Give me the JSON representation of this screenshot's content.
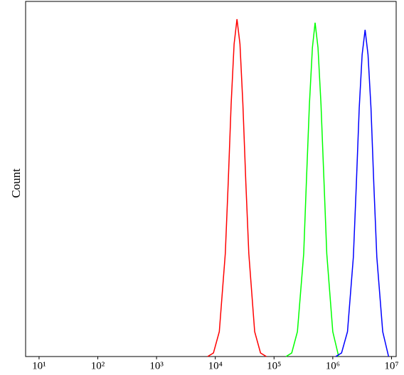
{
  "chart_data": {
    "type": "line",
    "y_label": "Count",
    "xscale": "log",
    "xlim": [
      5.9,
      12000000
    ],
    "ylim": [
      0,
      100
    ],
    "xticks": [
      {
        "value": 10,
        "label": "10¹"
      },
      {
        "value": 100,
        "label": "10²"
      },
      {
        "value": 1000,
        "label": "10³"
      },
      {
        "value": 10000,
        "label": "10⁴"
      },
      {
        "value": 100000,
        "label": "10⁵"
      },
      {
        "value": 1000000,
        "label": "10⁶"
      },
      {
        "value": 10000000,
        "label": "10⁷"
      }
    ],
    "series": [
      {
        "color": "#ff0000",
        "x": [
          7400,
          9300,
          11700,
          14800,
          16600,
          18600,
          20900,
          23400,
          26300,
          29500,
          33100,
          37200,
          46800,
          58900,
          74100
        ],
        "values": [
          0,
          1,
          7,
          29,
          49,
          71,
          88,
          95,
          88,
          71,
          49,
          29,
          7,
          1,
          0
        ]
      },
      {
        "color": "#00ff00",
        "x": [
          160000,
          200000,
          250000,
          320000,
          355000,
          400000,
          450000,
          500000,
          560000,
          630000,
          710000,
          790000,
          1000000,
          1260000
        ],
        "values": [
          0,
          1,
          7,
          29,
          49,
          71,
          87,
          94,
          87,
          71,
          49,
          29,
          7,
          0
        ]
      },
      {
        "color": "#0000ff",
        "x": [
          1120000,
          1410000,
          1780000,
          2240000,
          2510000,
          2820000,
          3160000,
          3550000,
          3980000,
          4470000,
          5010000,
          5620000,
          7080000,
          8910000
        ],
        "values": [
          0,
          1,
          7,
          28,
          48,
          70,
          85,
          92,
          85,
          70,
          48,
          28,
          7,
          0
        ]
      }
    ]
  }
}
